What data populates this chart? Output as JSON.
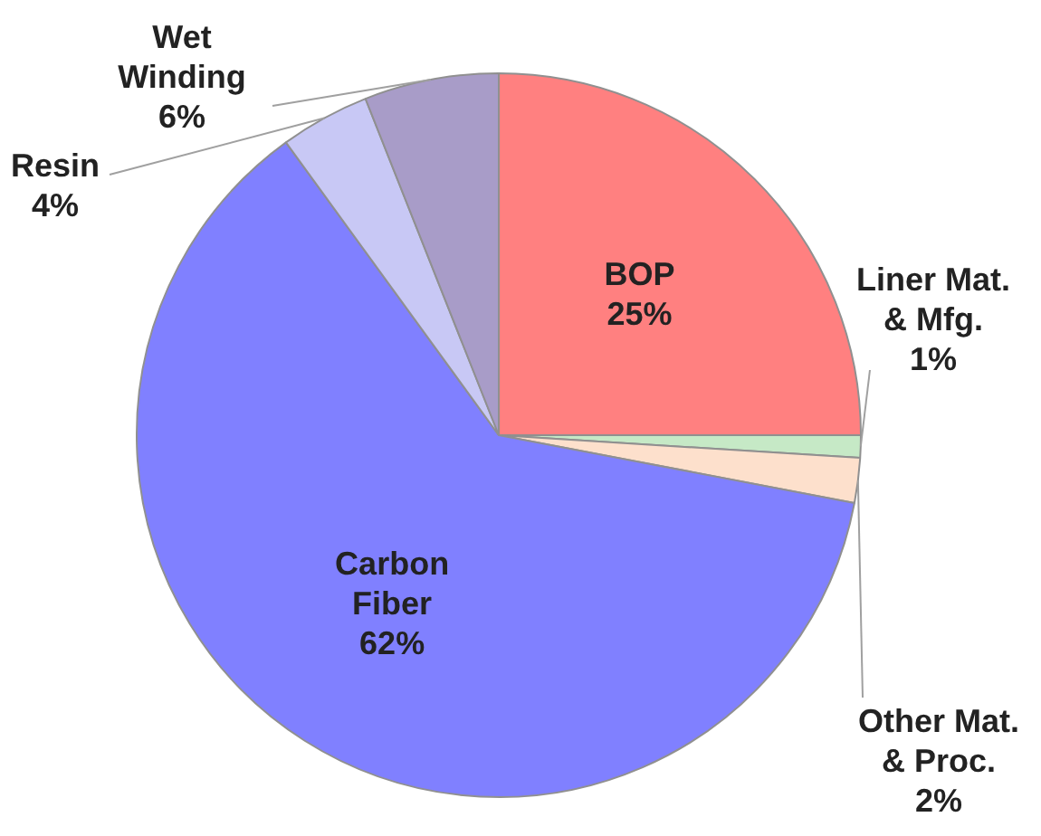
{
  "chart_data": {
    "type": "pie",
    "categories": [
      "BOP",
      "Liner Mat. & Mfg.",
      "Other Mat. & Proc.",
      "Carbon Fiber",
      "Resin",
      "Wet Winding"
    ],
    "values": [
      25,
      1,
      2,
      62,
      4,
      6
    ],
    "value_labels": [
      "25%",
      "1%",
      "2%",
      "62%",
      "4%",
      "6%"
    ],
    "colors": [
      "#ff8080",
      "#c6e9c6",
      "#fde0cc",
      "#8080ff",
      "#c8c8f5",
      "#a89cc8"
    ]
  }
}
